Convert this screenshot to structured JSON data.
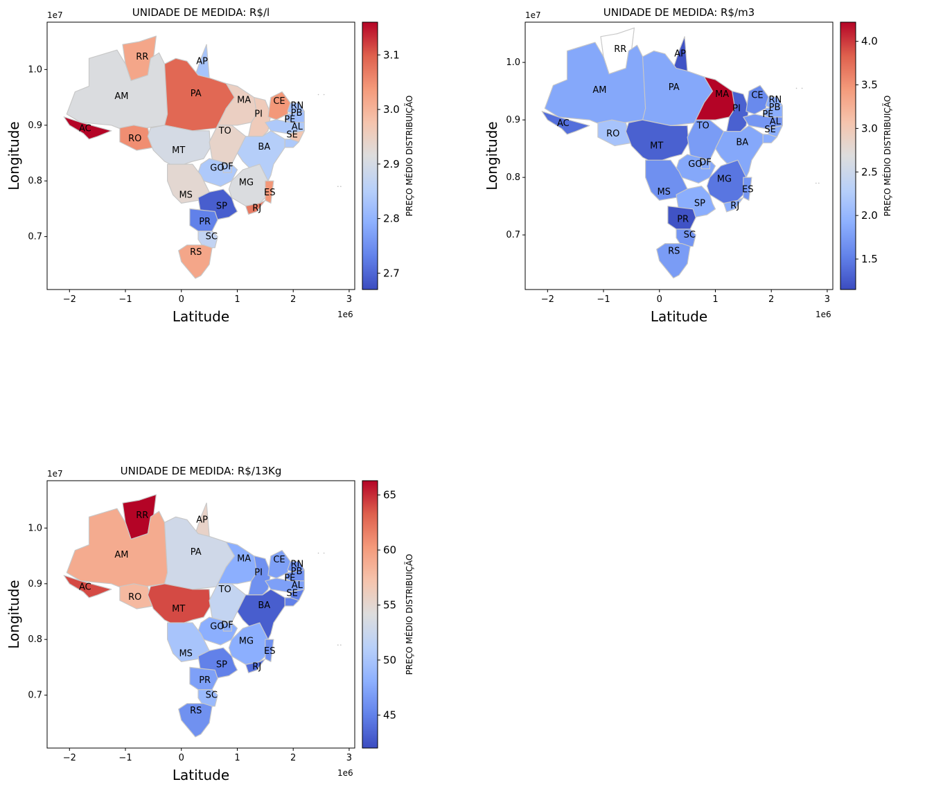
{
  "axes": {
    "xlabel": "Latitude",
    "ylabel": "Longitude",
    "x_exponent": "1e6",
    "y_exponent": "1e7",
    "colorbar_label": "PREÇO MÉDIO DISTRIBUIÇÃO"
  },
  "chart_data": [
    {
      "type": "choropleth",
      "title": "UNIDADE DE MEDIDA: R$/l",
      "xlabel": "Latitude",
      "ylabel": "Longitude",
      "xlim": [
        -2.4,
        3.1
      ],
      "ylim": [
        0.605,
        1.085
      ],
      "x_ticks": [
        "−2",
        "−1",
        "0",
        "1",
        "2",
        "3"
      ],
      "y_ticks": [
        "0.7",
        "0.8",
        "0.9",
        "1.0"
      ],
      "colorbar": {
        "label": "PREÇO MÉDIO DISTRIBUIÇÃO",
        "min": 2.67,
        "max": 3.16,
        "ticks": [
          "2.7",
          "2.8",
          "2.9",
          "3.0",
          "3.1"
        ]
      },
      "values": {
        "AC": 3.16,
        "AM": 2.91,
        "RR": 3.02,
        "AP": 2.83,
        "PA": 3.09,
        "RO": 3.05,
        "MT": 2.9,
        "MA": 2.95,
        "PI": 2.96,
        "CE": 3.04,
        "RN": 2.82,
        "PB": 2.82,
        "PE": 2.84,
        "AL": 2.97,
        "SE": 2.84,
        "TO": 2.94,
        "BA": 2.85,
        "GO": 2.84,
        "DF": 2.84,
        "MG": 2.91,
        "MS": 2.93,
        "ES": 3.04,
        "SP": 2.69,
        "RJ": 3.07,
        "PR": 2.73,
        "SC": 2.87,
        "RS": 3.02
      }
    },
    {
      "type": "choropleth",
      "title": "UNIDADE DE MEDIDA: R$/m3",
      "xlabel": "Latitude",
      "ylabel": "Longitude",
      "xlim": [
        -2.4,
        3.1
      ],
      "ylim": [
        0.605,
        1.07
      ],
      "x_ticks": [
        "−2",
        "−1",
        "0",
        "1",
        "2",
        "3"
      ],
      "y_ticks": [
        "0.7",
        "0.8",
        "0.9",
        "1.0"
      ],
      "colorbar": {
        "label": "PREÇO MÉDIO DISTRIBUIÇÃO",
        "min": 1.15,
        "max": 4.22,
        "ticks": [
          "1.5",
          "2.0",
          "2.5",
          "3.0",
          "3.5",
          "4.0"
        ]
      },
      "values": {
        "AC": 1.4,
        "AM": 1.85,
        "RR": null,
        "AP": 1.2,
        "PA": 1.85,
        "RO": 2.15,
        "MT": 1.3,
        "MA": 4.22,
        "PI": 1.3,
        "CE": 1.6,
        "RN": 1.9,
        "PB": 1.9,
        "PE": 1.7,
        "AL": 1.9,
        "SE": 1.9,
        "TO": 1.75,
        "BA": 1.85,
        "GO": 1.85,
        "DF": 1.85,
        "MG": 1.45,
        "MS": 1.65,
        "ES": 1.7,
        "SP": 1.9,
        "RJ": 1.9,
        "PR": 1.2,
        "SC": 1.7,
        "RS": 1.75
      }
    },
    {
      "type": "choropleth",
      "title": "UNIDADE DE MEDIDA: R$/13Kg",
      "xlabel": "Latitude",
      "ylabel": "Longitude",
      "xlim": [
        -2.4,
        3.1
      ],
      "ylim": [
        0.605,
        1.085
      ],
      "x_ticks": [
        "−2",
        "−1",
        "0",
        "1",
        "2",
        "3"
      ],
      "y_ticks": [
        "0.7",
        "0.8",
        "0.9",
        "1.0"
      ],
      "colorbar": {
        "label": "PREÇO MÉDIO DISTRIBUIÇÃO",
        "min": 42,
        "max": 66.3,
        "ticks": [
          "45",
          "50",
          "55",
          "60",
          "65"
        ]
      },
      "values": {
        "AC": 64,
        "AM": 59,
        "RR": 66.3,
        "AP": 55.5,
        "PA": 53,
        "RO": 58,
        "MT": 64,
        "MA": 48,
        "PI": 46,
        "CE": 47,
        "RN": 46,
        "PB": 46,
        "PE": 47,
        "AL": 45,
        "SE": 45,
        "TO": 52,
        "BA": 43,
        "GO": 48,
        "DF": 48,
        "MG": 48,
        "MS": 50,
        "ES": 46,
        "SP": 45,
        "RJ": 44,
        "PR": 47,
        "SC": 49,
        "RS": 46
      }
    }
  ]
}
